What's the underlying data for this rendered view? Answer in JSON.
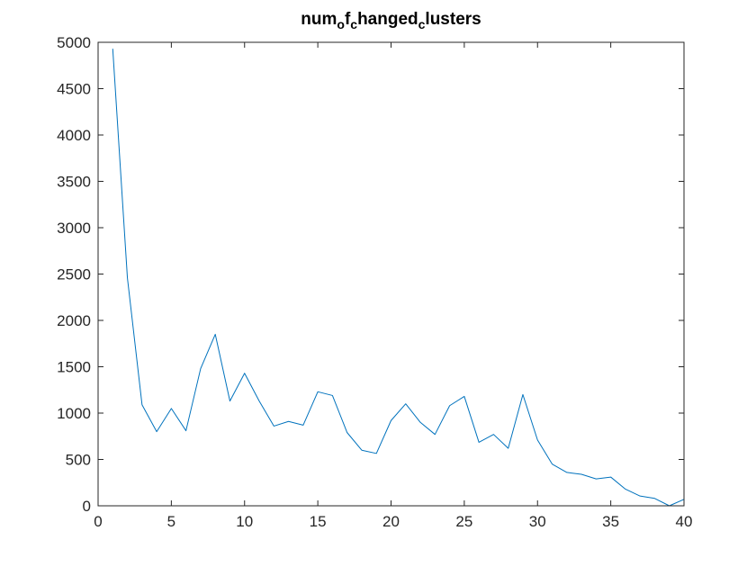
{
  "chart_data": {
    "type": "line",
    "title": "num_of_changed_clusters",
    "title_segments": [
      {
        "text": "num",
        "sub": false
      },
      {
        "text": "o",
        "sub": true
      },
      {
        "text": "f",
        "sub": false
      },
      {
        "text": "c",
        "sub": true
      },
      {
        "text": "hanged",
        "sub": false
      },
      {
        "text": "c",
        "sub": true
      },
      {
        "text": "lusters",
        "sub": false
      }
    ],
    "xlabel": "",
    "ylabel": "",
    "xlim": [
      0,
      40
    ],
    "ylim": [
      0,
      5000
    ],
    "xticks": [
      0,
      5,
      10,
      15,
      20,
      25,
      30,
      35,
      40
    ],
    "yticks": [
      0,
      500,
      1000,
      1500,
      2000,
      2500,
      3000,
      3500,
      4000,
      4500,
      5000
    ],
    "grid": false,
    "legend": "none",
    "line_color": "#0072BD",
    "series": [
      {
        "x": [
          1,
          2,
          3,
          4,
          5,
          6,
          7,
          8,
          9,
          10,
          11,
          12,
          13,
          14,
          15,
          16,
          17,
          18,
          19,
          20,
          21,
          22,
          23,
          24,
          25,
          26,
          27,
          28,
          29,
          30,
          31,
          32,
          33,
          34,
          35,
          36,
          37,
          38,
          39,
          40
        ],
        "values": [
          4930,
          2460,
          1090,
          800,
          1050,
          810,
          1480,
          1850,
          1130,
          1430,
          1130,
          860,
          910,
          870,
          1230,
          1190,
          790,
          600,
          565,
          920,
          1100,
          900,
          770,
          1080,
          1180,
          685,
          770,
          620,
          1200,
          710,
          450,
          360,
          340,
          290,
          310,
          180,
          105,
          80,
          0,
          70
        ]
      }
    ]
  }
}
